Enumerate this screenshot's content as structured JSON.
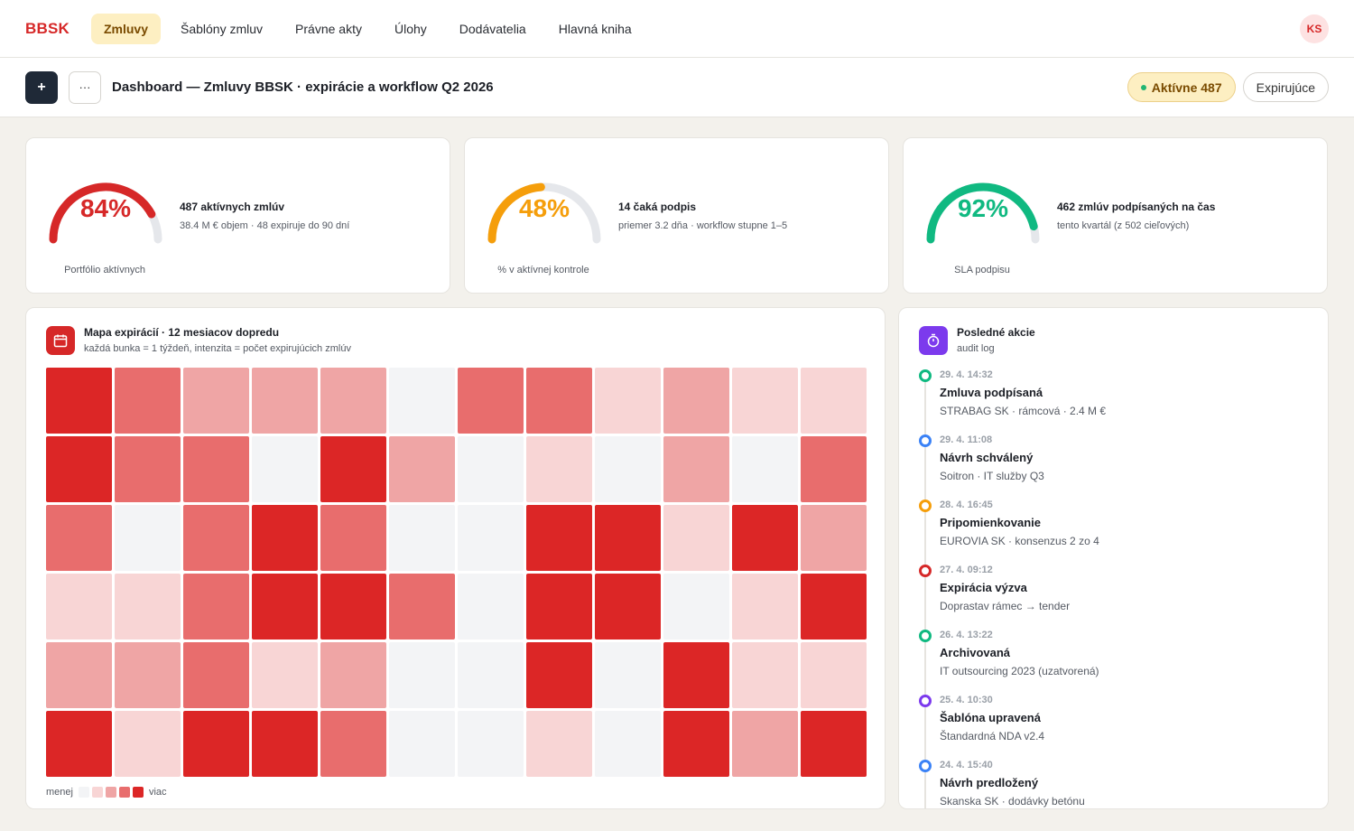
{
  "brand": "BBSK",
  "nav": [
    {
      "label": "Zmluvy",
      "active": true
    },
    {
      "label": "Šablóny zmluv",
      "active": false
    },
    {
      "label": "Právne akty",
      "active": false
    },
    {
      "label": "Úlohy",
      "active": false
    },
    {
      "label": "Dodávatelia",
      "active": false
    },
    {
      "label": "Hlavná kniha",
      "active": false
    }
  ],
  "user": {
    "initials": "KS"
  },
  "toolbar": {
    "add_label": "+",
    "more_label": "···",
    "title": "Dashboard — Zmluvy BBSK · expirácie a workflow Q2 2026",
    "active_pill": "Aktívne 487",
    "expiring_button": "Expirujúce"
  },
  "kpis": [
    {
      "percent_label": "84%",
      "value": 84,
      "color": "#d62828",
      "caption": "Portfólio aktívnych",
      "title": "487 aktívnych zmlúv",
      "subtitle": "38.4 M € objem · 48 expiruje do 90 dní"
    },
    {
      "percent_label": "48%",
      "value": 48,
      "color": "#f59e0b",
      "caption": "% v aktívnej kontrole",
      "title": "14 čaká podpis",
      "subtitle": "priemer 3.2 dňa · workflow stupne 1–5"
    },
    {
      "percent_label": "92%",
      "value": 92,
      "color": "#10b981",
      "caption": "SLA podpisu",
      "title": "462 zmlúv podpísaných na čas",
      "subtitle": "tento kvartál (z 502 cieľových)"
    }
  ],
  "heatmap": {
    "icon": "calendar-icon",
    "title": "Mapa expirácií · 12 mesiacov dopredu",
    "subtitle": "každá bunka = 1 týždeň, intenzita = počet expirujúcich zmlúv",
    "palette": [
      "#f3f4f6",
      "#f8d5d5",
      "#efa5a5",
      "#e86d6d",
      "#dc2626"
    ],
    "levels": [
      [
        4,
        3,
        2,
        2,
        2,
        0,
        3,
        3,
        1,
        2,
        1,
        1
      ],
      [
        4,
        3,
        3,
        0,
        4,
        2,
        0,
        1,
        0,
        2,
        0,
        3
      ],
      [
        3,
        0,
        3,
        4,
        3,
        0,
        0,
        4,
        4,
        1,
        4,
        2
      ],
      [
        1,
        1,
        3,
        4,
        4,
        3,
        0,
        4,
        4,
        0,
        1,
        4
      ],
      [
        2,
        2,
        3,
        1,
        2,
        0,
        0,
        4,
        0,
        4,
        1,
        1
      ],
      [
        4,
        1,
        4,
        4,
        3,
        0,
        0,
        1,
        0,
        4,
        2,
        4
      ]
    ],
    "legend_less": "menej",
    "legend_more": "viac"
  },
  "activity": {
    "icon": "timer-icon",
    "title": "Posledné akcie",
    "subtitle": "audit log",
    "items": [
      {
        "time": "29. 4. 14:32",
        "event": "Zmluva podpísaná",
        "detail": "STRABAG SK · rámcová · 2.4 M €",
        "color": "#10b981"
      },
      {
        "time": "29. 4. 11:08",
        "event": "Návrh schválený",
        "detail": "Soitron · IT služby Q3",
        "color": "#3b82f6"
      },
      {
        "time": "28. 4. 16:45",
        "event": "Pripomienkovanie",
        "detail": "EUROVIA SK · konsenzus 2 zo 4",
        "color": "#f59e0b"
      },
      {
        "time": "27. 4. 09:12",
        "event": "Expirácia výzva",
        "detail": "Doprastav rámec → tender",
        "color": "#d62828"
      },
      {
        "time": "26. 4. 13:22",
        "event": "Archivovaná",
        "detail": "IT outsourcing 2023 (uzatvorená)",
        "color": "#10b981"
      },
      {
        "time": "25. 4. 10:30",
        "event": "Šablóna upravená",
        "detail": "Štandardná NDA v2.4",
        "color": "#7c3aed"
      },
      {
        "time": "24. 4. 15:40",
        "event": "Návrh predložený",
        "detail": "Skanska SK · dodávky betónu",
        "color": "#3b82f6"
      }
    ]
  }
}
